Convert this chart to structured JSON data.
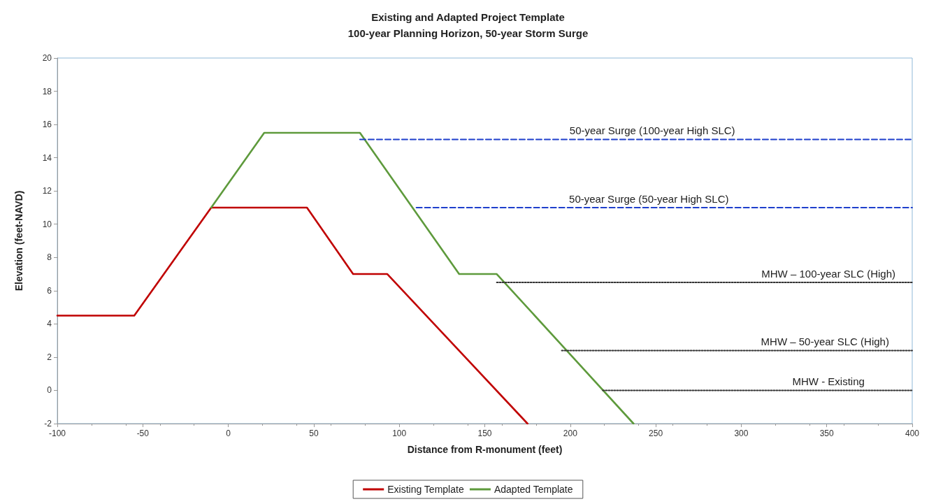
{
  "chart_data": {
    "type": "line",
    "title": "Existing and Adapted Project Template",
    "subtitle": "100-year Planning Horizon, 50-year Storm Surge",
    "xlabel": "Distance from R-monument (feet)",
    "ylabel": "Elevation (feet-NAVD)",
    "xlim": [
      -100,
      400
    ],
    "xticks": [
      -100,
      -50,
      0,
      50,
      100,
      150,
      200,
      250,
      300,
      350,
      400
    ],
    "ylim": [
      -2,
      20
    ],
    "yticks": [
      -2,
      0,
      2,
      4,
      6,
      8,
      10,
      12,
      14,
      16,
      18,
      20
    ],
    "grid": false,
    "legend": "bottom",
    "marker": "none",
    "series": [
      {
        "name": "Existing Template",
        "color": "#c00000",
        "line_style": "solid",
        "x": [
          -100,
          -55,
          -10,
          46,
          73,
          93,
          175
        ],
        "values": [
          4.5,
          4.5,
          11,
          11,
          7,
          7,
          -2
        ]
      },
      {
        "name": "Adapted Template",
        "color": "#5e9a3c",
        "line_style": "solid",
        "x": [
          -10,
          21,
          77,
          135,
          157,
          237
        ],
        "values": [
          11,
          15.5,
          15.5,
          7,
          7,
          -2
        ]
      },
      {
        "color": "#1f3fcc",
        "line_style": "dashed",
        "x": [
          77,
          400
        ],
        "values": [
          15.1,
          15.1
        ]
      },
      {
        "color": "#1f3fcc",
        "line_style": "dashed",
        "x": [
          110,
          400
        ],
        "values": [
          11,
          11
        ]
      },
      {
        "color": "#333333",
        "line_style": "dotted",
        "x": [
          157,
          400
        ],
        "values": [
          6.5,
          6.5
        ]
      },
      {
        "color": "#333333",
        "line_style": "dotted",
        "x": [
          195,
          400
        ],
        "values": [
          2.4,
          2.4
        ]
      },
      {
        "color": "#333333",
        "line_style": "dotted",
        "x": [
          219,
          400
        ],
        "values": [
          0,
          0
        ]
      }
    ],
    "annotations": [
      {
        "text": "50-year Surge (100-year High SLC)",
        "x": 248,
        "y": 15.1
      },
      {
        "text": "50-year Surge (50-year High SLC)",
        "x": 246,
        "y": 11
      },
      {
        "text": "MHW – 100-year SLC (High)",
        "x": 351,
        "y": 6.5
      },
      {
        "text": "MHW – 50-year SLC (High)",
        "x": 349,
        "y": 2.4
      },
      {
        "text": "MHW - Existing",
        "x": 351,
        "y": 0
      }
    ]
  }
}
